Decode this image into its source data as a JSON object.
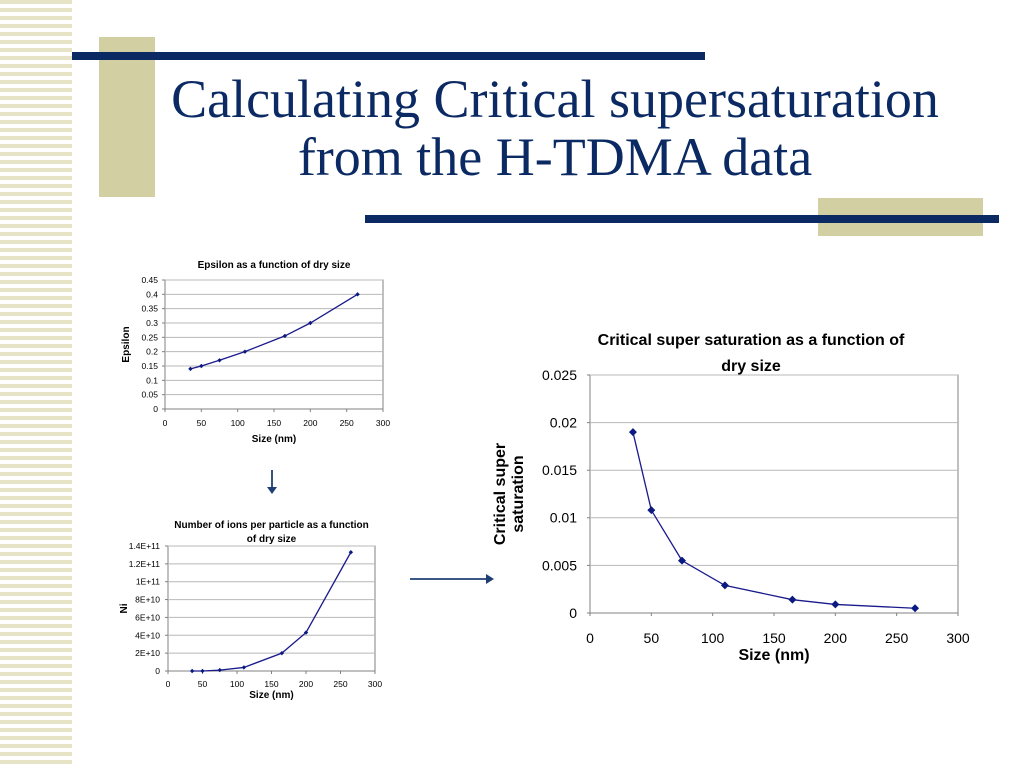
{
  "slide": {
    "title_line1": "Calculating Critical supersaturation",
    "title_line2": "from the H-TDMA data"
  },
  "colors": {
    "navy": "#0b2a63",
    "khaki": "#d2d0a3",
    "series": "#1a1a8c"
  },
  "chart_data": [
    {
      "type": "line",
      "title": "Epsilon as a function of dry size",
      "xlabel": "Size (nm)",
      "ylabel": "Epsilon",
      "xlim": [
        0,
        300
      ],
      "ylim": [
        0,
        0.45
      ],
      "xticks": [
        0,
        50,
        100,
        150,
        200,
        250,
        300
      ],
      "yticks": [
        0,
        0.05,
        0.1,
        0.15,
        0.2,
        0.25,
        0.3,
        0.35,
        0.4,
        0.45
      ],
      "ytick_labels": [
        "0",
        "0.05",
        "0.1",
        "0.15",
        "0.2",
        "0.25",
        "0.3",
        "0.35",
        "0.4",
        "0.45"
      ],
      "grid": true,
      "series": [
        {
          "x": [
            35,
            50,
            75,
            110,
            165,
            200,
            265
          ],
          "y": [
            0.14,
            0.15,
            0.17,
            0.2,
            0.255,
            0.3,
            0.4
          ]
        }
      ]
    },
    {
      "type": "line",
      "title": "Number of ions per particle as a function of dry size",
      "title_lines": [
        "Number of ions per particle as a function",
        "of dry size"
      ],
      "xlabel": "Size (nm)",
      "ylabel": "Ni",
      "xlim": [
        0,
        300
      ],
      "ylim": [
        0,
        140000000000.0
      ],
      "xticks": [
        0,
        50,
        100,
        150,
        200,
        250,
        300
      ],
      "yticks": [
        0,
        20000000000.0,
        40000000000.0,
        60000000000.0,
        80000000000.0,
        100000000000.0,
        120000000000.0,
        140000000000.0
      ],
      "ytick_labels": [
        "0",
        "2E+10",
        "4E+10",
        "6E+10",
        "8E+10",
        "1E+11",
        "1.2E+11",
        "1.4E+11"
      ],
      "grid": true,
      "series": [
        {
          "x": [
            35,
            50,
            75,
            110,
            165,
            200,
            265
          ],
          "y": [
            0,
            0,
            1000000000.0,
            4000000000.0,
            20000000000.0,
            43000000000.0,
            133000000000.0
          ]
        }
      ]
    },
    {
      "type": "line",
      "title": "Critical super saturation as a function of dry size",
      "title_lines": [
        "Critical super saturation as a function of",
        "dry size"
      ],
      "xlabel": "Size (nm)",
      "ylabel": "Critical super saturation",
      "ylabel_lines": [
        "Critical super",
        "saturation"
      ],
      "xlim": [
        0,
        300
      ],
      "ylim": [
        0,
        0.025
      ],
      "xticks": [
        0,
        50,
        100,
        150,
        200,
        250,
        300
      ],
      "yticks": [
        0,
        0.005,
        0.01,
        0.015,
        0.02,
        0.025
      ],
      "ytick_labels": [
        "0",
        "0.005",
        "0.01",
        "0.015",
        "0.02",
        "0.025"
      ],
      "grid": true,
      "series": [
        {
          "x": [
            35,
            50,
            75,
            110,
            165,
            200,
            265
          ],
          "y": [
            0.019,
            0.0108,
            0.0055,
            0.0029,
            0.0014,
            0.0009,
            0.0005
          ]
        }
      ]
    }
  ]
}
